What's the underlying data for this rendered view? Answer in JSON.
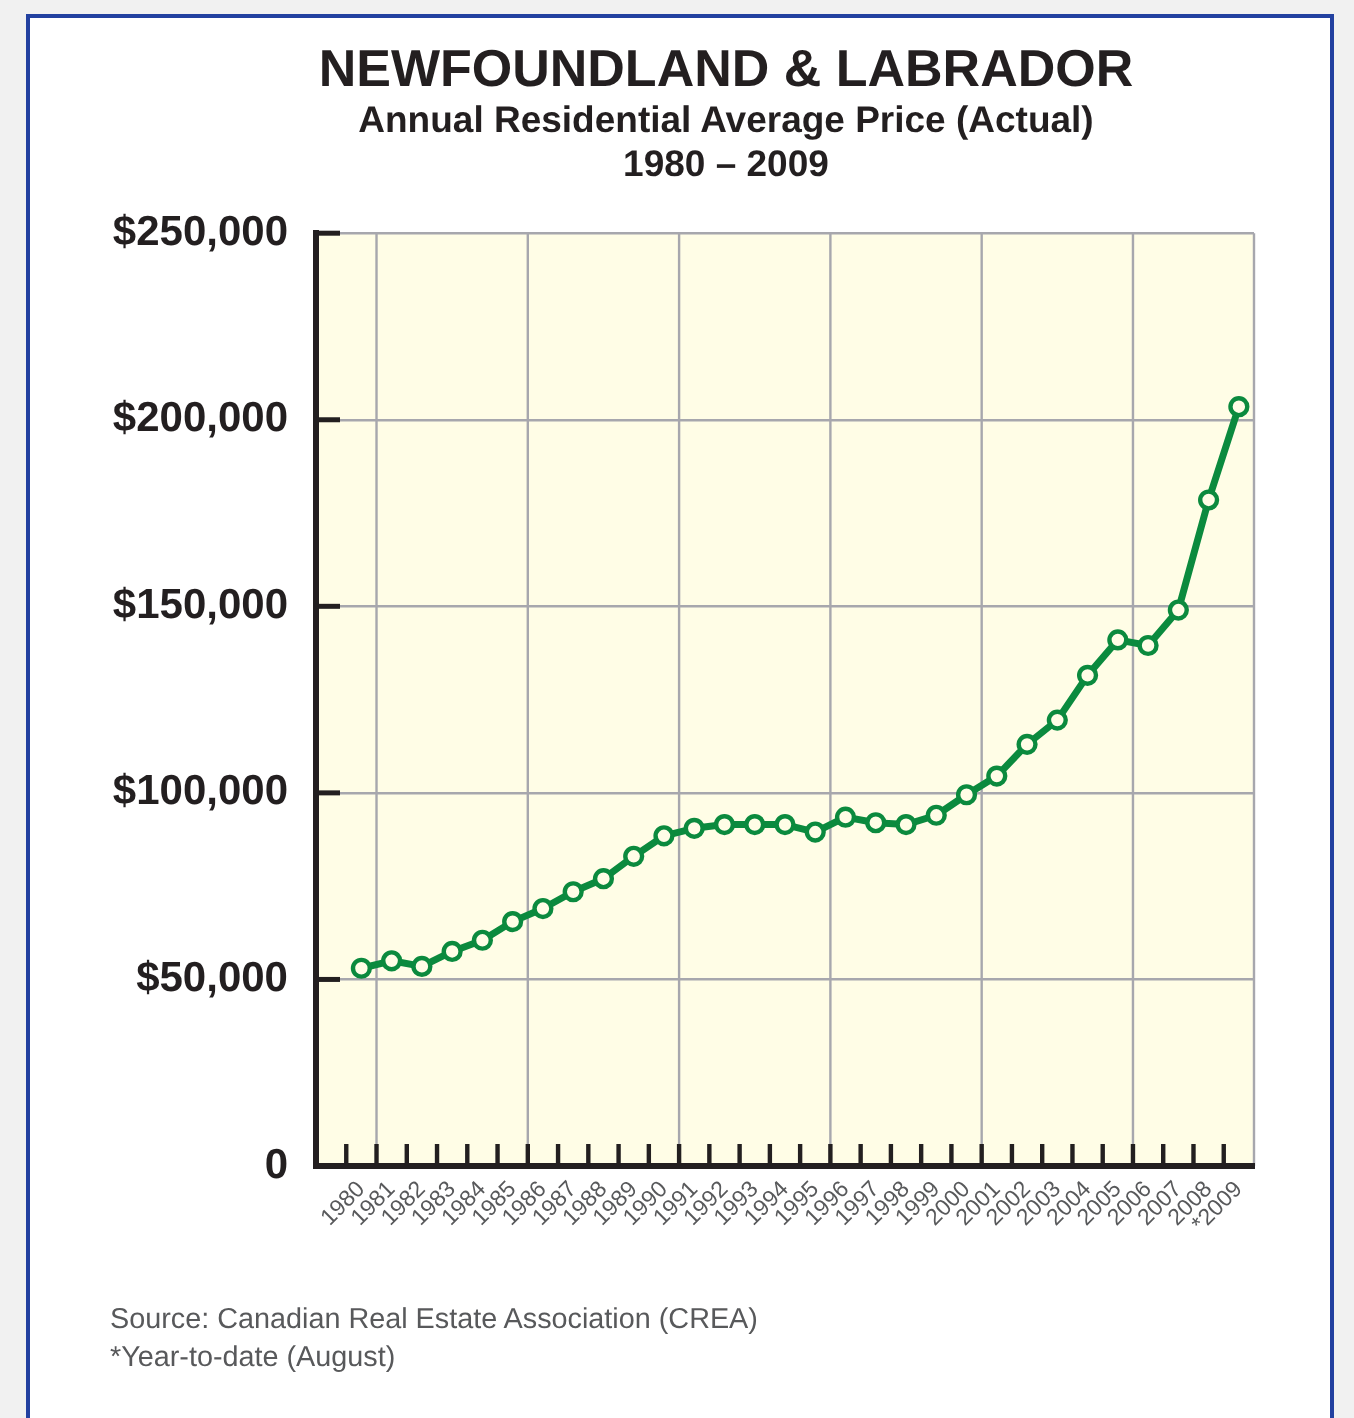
{
  "chart_data": {
    "type": "line",
    "title": "NEWFOUNDLAND & LABRADOR",
    "subtitle": "Annual Residential Average Price (Actual)\n1980 – 2009",
    "categories": [
      "1980",
      "1981",
      "1982",
      "1983",
      "1984",
      "1985",
      "1986",
      "1987",
      "1988",
      "1989",
      "1990",
      "1991",
      "1992",
      "1993",
      "1994",
      "1995",
      "1996",
      "1997",
      "1998",
      "1999",
      "2000",
      "2001",
      "2002",
      "2003",
      "2004",
      "2005",
      "2006",
      "2007",
      "2008",
      "*2009"
    ],
    "series": [
      {
        "color": "#0b8a3e",
        "values": [
          53000,
          55000,
          53500,
          57500,
          60500,
          65500,
          69000,
          73500,
          77000,
          83000,
          88500,
          90500,
          91500,
          91500,
          91500,
          89500,
          93500,
          92000,
          91500,
          94000,
          99500,
          104500,
          113000,
          119500,
          131500,
          141000,
          139500,
          149000,
          178500,
          203500
        ]
      }
    ],
    "ylim": [
      0,
      250000
    ],
    "yticks": [
      0,
      {
        "value": 50000,
        "label": "$50,000"
      },
      {
        "value": 100000,
        "label": "$100,000"
      },
      {
        "value": 150000,
        "label": "$150,000"
      },
      {
        "value": 200000,
        "label": "$200,000"
      },
      {
        "value": 250000,
        "label": "$250,000"
      }
    ],
    "grid": true,
    "marker": "circle",
    "line_style": "solid",
    "annotations": [
      "Source: Canadian Real Estate Association (CREA)",
      "*Year-to-date (August)"
    ]
  }
}
